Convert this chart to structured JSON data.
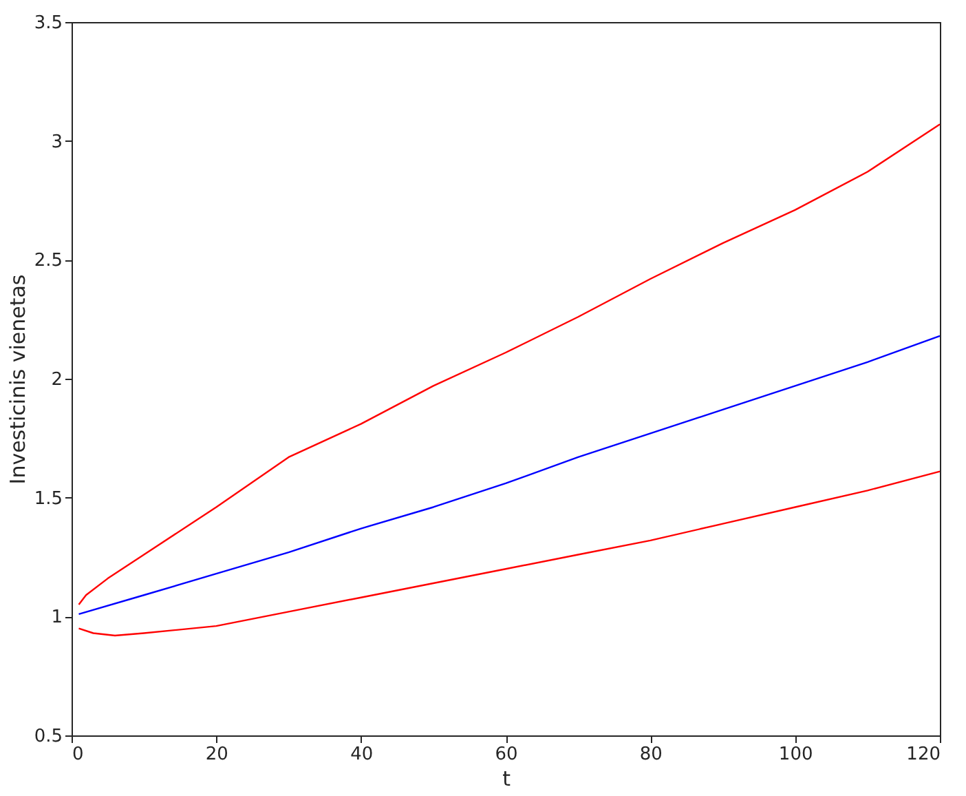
{
  "chart_data": {
    "type": "line",
    "xlabel": "t",
    "ylabel": "Investicinis vienetas",
    "xlim": [
      0,
      120
    ],
    "ylim": [
      0.5,
      3.5
    ],
    "xticks": [
      0,
      20,
      40,
      60,
      80,
      100,
      120
    ],
    "yticks": [
      0.5,
      1,
      1.5,
      2,
      2.5,
      3,
      3.5
    ],
    "grid": false,
    "legend": false,
    "marker": "none",
    "line_style": "solid",
    "series": [
      {
        "color": "#ff0000",
        "x": [
          1,
          2,
          5,
          10,
          20,
          30,
          40,
          50,
          60,
          70,
          80,
          90,
          100,
          110,
          120
        ],
        "values": [
          1.05,
          1.09,
          1.16,
          1.26,
          1.46,
          1.67,
          1.81,
          1.97,
          2.11,
          2.26,
          2.42,
          2.57,
          2.71,
          2.87,
          3.07
        ]
      },
      {
        "color": "#0000ff",
        "x": [
          1,
          10,
          20,
          30,
          40,
          50,
          60,
          70,
          80,
          90,
          100,
          110,
          120
        ],
        "values": [
          1.01,
          1.09,
          1.18,
          1.27,
          1.37,
          1.46,
          1.56,
          1.67,
          1.77,
          1.87,
          1.97,
          2.07,
          2.18
        ]
      },
      {
        "color": "#ff0000",
        "x": [
          1,
          3,
          6,
          10,
          20,
          30,
          40,
          50,
          60,
          70,
          80,
          90,
          100,
          110,
          120
        ],
        "values": [
          0.95,
          0.93,
          0.92,
          0.93,
          0.96,
          1.02,
          1.08,
          1.14,
          1.2,
          1.26,
          1.32,
          1.39,
          1.46,
          1.53,
          1.61
        ]
      }
    ]
  }
}
